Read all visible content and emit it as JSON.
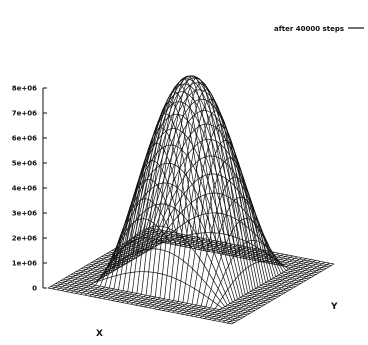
{
  "chart_data": {
    "type": "surface",
    "title": "",
    "xlabel": "X",
    "ylabel": "Y",
    "zlabel": "",
    "z_ticks": [
      "0",
      "1e+06",
      "2e+06",
      "3e+06",
      "4e+06",
      "5e+06",
      "6e+06",
      "7e+06",
      "8e+06"
    ],
    "zlim": [
      0,
      8000000
    ],
    "grid": false,
    "legend_position": "top-right",
    "series": [
      {
        "name": "after 40000 steps",
        "z_max": 8000000,
        "z_min": 0,
        "shape": "single peak at grid center, flat base plane of 0 around the edges"
      }
    ]
  },
  "colors": {
    "line": "#111111",
    "background": "#ffffff"
  }
}
